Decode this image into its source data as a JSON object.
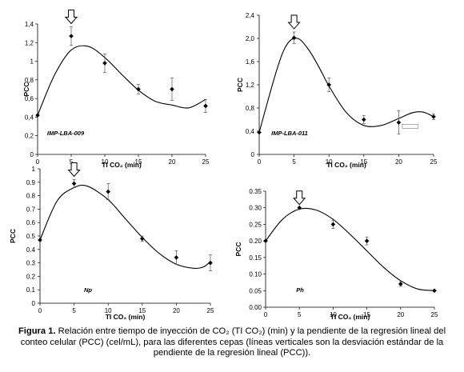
{
  "caption": {
    "label": "Figura 1.",
    "text": "Relación entre tiempo de inyección de CO₂ (TI CO₂) (min) y la pendiente de la regresión lineal del conteo celular (PCC) (cel/mL), para las diferentes cepas (líneas verticales son la desviación estándar de la pendiente de la regresión lineal (PCC))."
  },
  "chart_data": [
    {
      "type": "scatter",
      "panel": "top-left",
      "tag": "IMP-LBA-009",
      "xlabel": "TI CO₂ (min)",
      "ylabel": "PCC",
      "xlim": [
        0,
        25
      ],
      "ylim": [
        0,
        1.4
      ],
      "xticks": [
        "0",
        "5",
        "10",
        "15",
        "20",
        "25"
      ],
      "yticks": [
        "0",
        "0,2",
        "0,4",
        "0,6",
        "0,8",
        "1",
        "1,2",
        "1,4"
      ],
      "points": [
        {
          "x": 0,
          "y": 0.42,
          "err": 0
        },
        {
          "x": 5,
          "y": 1.27,
          "err": 0.1
        },
        {
          "x": 10,
          "y": 0.98,
          "err": 0.1
        },
        {
          "x": 15,
          "y": 0.7,
          "err": 0.05
        },
        {
          "x": 20,
          "y": 0.7,
          "err": 0.12
        },
        {
          "x": 25,
          "y": 0.52,
          "err": 0.07
        }
      ],
      "trend": [
        [
          0,
          0.42
        ],
        [
          2.5,
          0.85
        ],
        [
          5,
          1.12
        ],
        [
          7.5,
          1.16
        ],
        [
          10,
          1.04
        ],
        [
          12.5,
          0.86
        ],
        [
          15,
          0.69
        ],
        [
          17.5,
          0.57
        ],
        [
          20,
          0.53
        ],
        [
          22.5,
          0.5
        ],
        [
          25,
          0.59
        ]
      ],
      "arrow_x": 5
    },
    {
      "type": "scatter",
      "panel": "top-right",
      "tag": "IMP-LBA-011",
      "xlabel": "TI CO₂ (min)",
      "ylabel": "PCC",
      "xlim": [
        0,
        25
      ],
      "ylim": [
        0,
        2.4
      ],
      "xticks": [
        "0",
        "5",
        "10",
        "15",
        "20",
        "25"
      ],
      "yticks": [
        "0",
        "0,4",
        "0,8",
        "1,2",
        "1,6",
        "2,0",
        "2,4"
      ],
      "points": [
        {
          "x": 0,
          "y": 0.38,
          "err": 0
        },
        {
          "x": 5,
          "y": 2.01,
          "err": 0.1
        },
        {
          "x": 10,
          "y": 1.2,
          "err": 0.12
        },
        {
          "x": 15,
          "y": 0.6,
          "err": 0.07
        },
        {
          "x": 20,
          "y": 0.55,
          "err": 0.2
        },
        {
          "x": 25,
          "y": 0.65,
          "err": 0.05
        }
      ],
      "trend": [
        [
          0,
          0.38
        ],
        [
          2.5,
          1.45
        ],
        [
          4,
          1.9
        ],
        [
          5.5,
          2.0
        ],
        [
          7,
          1.82
        ],
        [
          8.5,
          1.52
        ],
        [
          10,
          1.18
        ],
        [
          12.5,
          0.72
        ],
        [
          15,
          0.5
        ],
        [
          17.5,
          0.5
        ],
        [
          20,
          0.62
        ],
        [
          22,
          0.72
        ],
        [
          23.5,
          0.73
        ],
        [
          25,
          0.65
        ]
      ],
      "arrow_x": 5,
      "legend_box": true
    },
    {
      "type": "scatter",
      "panel": "bottom-left",
      "tag": "Np",
      "xlabel": "TI CO₂ (min)",
      "ylabel": "PCC",
      "xlim": [
        0,
        25
      ],
      "ylim": [
        0,
        1.0
      ],
      "xticks": [
        "0",
        "5",
        "10",
        "15",
        "20",
        "25"
      ],
      "yticks": [
        "0",
        "0.1",
        "0.2",
        "0.3",
        "0.4",
        "0.5",
        "0.6",
        "0.7",
        "0.8",
        "0.9",
        "1"
      ],
      "points": [
        {
          "x": 0,
          "y": 0.47,
          "err": 0
        },
        {
          "x": 5,
          "y": 0.89,
          "err": 0.03
        },
        {
          "x": 10,
          "y": 0.83,
          "err": 0.06
        },
        {
          "x": 15,
          "y": 0.48,
          "err": 0.02
        },
        {
          "x": 20,
          "y": 0.34,
          "err": 0.05
        },
        {
          "x": 25,
          "y": 0.3,
          "err": 0.06
        }
      ],
      "trend": [
        [
          0,
          0.47
        ],
        [
          2.5,
          0.76
        ],
        [
          5,
          0.86
        ],
        [
          7,
          0.87
        ],
        [
          10,
          0.77
        ],
        [
          12.5,
          0.63
        ],
        [
          15,
          0.49
        ],
        [
          17.5,
          0.37
        ],
        [
          20,
          0.29
        ],
        [
          22.5,
          0.26
        ],
        [
          24,
          0.27
        ],
        [
          25,
          0.31
        ]
      ],
      "arrow_x": 5
    },
    {
      "type": "scatter",
      "panel": "bottom-right",
      "tag": "Ph",
      "xlabel": "TI CO₂ (min)",
      "ylabel": "PCC",
      "xlim": [
        0,
        25
      ],
      "ylim": [
        0,
        0.35
      ],
      "xticks": [
        "0",
        "5",
        "10",
        "15",
        "20",
        "25"
      ],
      "yticks": [
        "0.00",
        "0.05",
        "0.10",
        "0.15",
        "0.20",
        "0.25",
        "0.30",
        "0.35"
      ],
      "points": [
        {
          "x": 0,
          "y": 0.2,
          "err": 0
        },
        {
          "x": 5,
          "y": 0.3,
          "err": 0
        },
        {
          "x": 10,
          "y": 0.25,
          "err": 0.012
        },
        {
          "x": 15,
          "y": 0.2,
          "err": 0.012
        },
        {
          "x": 20,
          "y": 0.07,
          "err": 0.007
        },
        {
          "x": 25,
          "y": 0.05,
          "err": 0
        }
      ],
      "trend": [
        [
          0,
          0.2
        ],
        [
          2.5,
          0.265
        ],
        [
          5,
          0.296
        ],
        [
          7.5,
          0.293
        ],
        [
          10,
          0.265
        ],
        [
          12.5,
          0.22
        ],
        [
          15,
          0.17
        ],
        [
          17.5,
          0.12
        ],
        [
          20,
          0.08
        ],
        [
          22.5,
          0.055
        ],
        [
          25,
          0.05
        ]
      ],
      "arrow_x": 5
    }
  ]
}
